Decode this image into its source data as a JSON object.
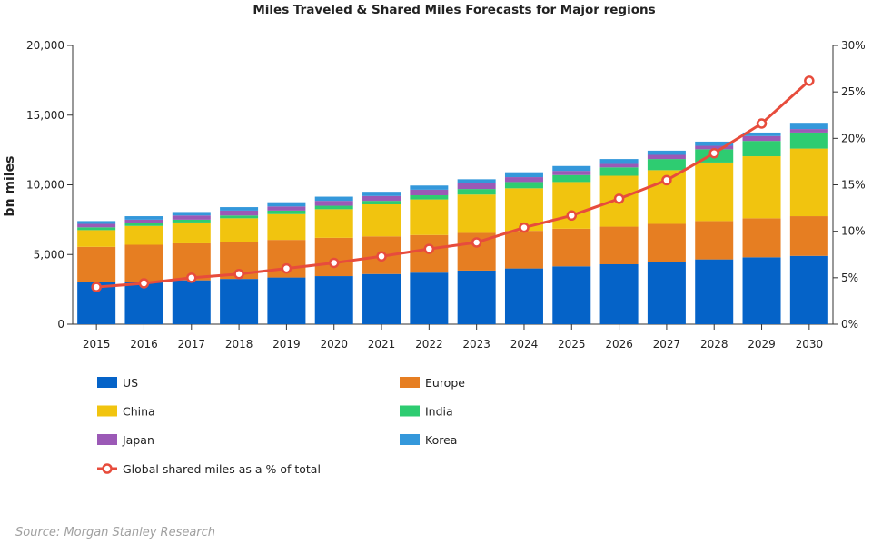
{
  "chart_data": {
    "type": "bar",
    "stacked": true,
    "title": "Miles Traveled & Shared Miles Forecasts for Major regions",
    "ylabel": "bn miles",
    "ylim": [
      0,
      20000
    ],
    "yticks": [
      "0",
      "5,000",
      "10,000",
      "15,000",
      "20,000"
    ],
    "y2lim": [
      0,
      30
    ],
    "y2ticks": [
      "0%",
      "5%",
      "10%",
      "15%",
      "20%",
      "25%",
      "30%"
    ],
    "categories": [
      "2015",
      "2016",
      "2017",
      "2018",
      "2019",
      "2020",
      "2021",
      "2022",
      "2023",
      "2024",
      "2025",
      "2026",
      "2027",
      "2028",
      "2029",
      "2030"
    ],
    "series": [
      {
        "name": "US",
        "color": "#0563c8",
        "values": [
          3000,
          3050,
          3150,
          3250,
          3350,
          3450,
          3600,
          3700,
          3850,
          4000,
          4150,
          4300,
          4450,
          4650,
          4800,
          4900
        ]
      },
      {
        "name": "Europe",
        "color": "#e67e22",
        "values": [
          2550,
          2650,
          2650,
          2650,
          2700,
          2750,
          2700,
          2700,
          2700,
          2700,
          2700,
          2700,
          2750,
          2750,
          2800,
          2850
        ]
      },
      {
        "name": "China",
        "color": "#f1c40f",
        "values": [
          1200,
          1350,
          1500,
          1700,
          1850,
          2050,
          2300,
          2550,
          2750,
          3050,
          3350,
          3650,
          3850,
          4200,
          4450,
          4850
        ]
      },
      {
        "name": "India",
        "color": "#2ecc71",
        "values": [
          200,
          200,
          200,
          200,
          250,
          250,
          250,
          300,
          400,
          450,
          500,
          600,
          800,
          950,
          1100,
          1150
        ]
      },
      {
        "name": "Japan",
        "color": "#9b59b6",
        "values": [
          250,
          250,
          300,
          350,
          300,
          350,
          350,
          400,
          400,
          350,
          300,
          250,
          300,
          250,
          350,
          250
        ]
      },
      {
        "name": "Korea",
        "color": "#3498db",
        "values": [
          200,
          250,
          250,
          250,
          300,
          300,
          300,
          300,
          300,
          350,
          350,
          350,
          300,
          300,
          250,
          450
        ]
      }
    ],
    "line": {
      "name": "Global shared miles as a % of total",
      "color": "#e74c3c",
      "axis": "right",
      "values": [
        4.0,
        4.4,
        5.0,
        5.4,
        6.0,
        6.6,
        7.3,
        8.1,
        8.8,
        10.4,
        11.7,
        13.5,
        15.5,
        18.4,
        21.6,
        26.2
      ]
    },
    "legend_position": "bottom"
  },
  "source": "Source: Morgan Stanley Research"
}
